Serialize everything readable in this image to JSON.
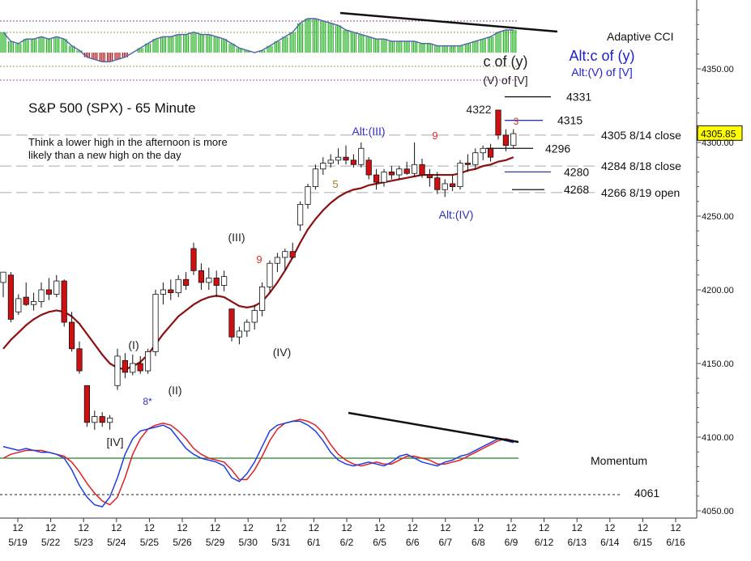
{
  "chart_data": {
    "type": "candlestick",
    "title": "S&P 500 (SPX) - 65 Minute",
    "note": [
      "Think a lower high in the afternoon is more",
      "likely than a new high on the day"
    ],
    "y_axis": {
      "ticks": [
        4050,
        4100,
        4150,
        4200,
        4250,
        4300,
        4350
      ],
      "tick_labels": [
        "4050.00",
        "4100.00",
        "4150.00",
        "4200.00",
        "4250.00",
        "4300.00",
        "4350.00"
      ],
      "ylim": [
        4045,
        4390
      ]
    },
    "x_axis": {
      "dates": [
        "5/19",
        "5/22",
        "5/23",
        "5/24",
        "5/25",
        "5/26",
        "5/29",
        "5/30",
        "5/31",
        "6/1",
        "6/2",
        "6/5",
        "6/6",
        "6/7",
        "6/8",
        "6/9",
        "6/12",
        "6/13",
        "6/14",
        "6/15",
        "6/16"
      ],
      "hour_label": "12"
    },
    "last_price": "4305.85",
    "price_candles": [
      [
        4205,
        4212,
        4195,
        4212
      ],
      [
        4210,
        4212,
        4178,
        4180
      ],
      [
        4185,
        4197,
        4183,
        4194
      ],
      [
        4195,
        4205,
        4189,
        4190
      ],
      [
        4190,
        4198,
        4186,
        4192
      ],
      [
        4192,
        4205,
        4188,
        4200
      ],
      [
        4200,
        4208,
        4193,
        4197
      ],
      [
        4197,
        4210,
        4195,
        4206
      ],
      [
        4206,
        4207,
        4175,
        4178
      ],
      [
        4178,
        4185,
        4158,
        4160
      ],
      [
        4160,
        4165,
        4143,
        4145
      ],
      [
        4135,
        4135,
        4107,
        4110
      ],
      [
        4110,
        4118,
        4105,
        4114
      ],
      [
        4114,
        4117,
        4107,
        4110
      ],
      [
        4110,
        4115,
        4105,
        4113
      ],
      [
        4135,
        4160,
        4132,
        4155
      ],
      [
        4152,
        4157,
        4140,
        4144
      ],
      [
        4144,
        4156,
        4142,
        4150
      ],
      [
        4150,
        4155,
        4143,
        4145
      ],
      [
        4145,
        4160,
        4143,
        4158
      ],
      [
        4158,
        4200,
        4155,
        4197
      ],
      [
        4197,
        4205,
        4190,
        4200
      ],
      [
        4200,
        4207,
        4193,
        4198
      ],
      [
        4198,
        4210,
        4195,
        4207
      ],
      [
        4207,
        4212,
        4200,
        4203
      ],
      [
        4228,
        4232,
        4210,
        4213
      ],
      [
        4213,
        4218,
        4200,
        4205
      ],
      [
        4205,
        4215,
        4200,
        4208
      ],
      [
        4208,
        4213,
        4195,
        4203
      ],
      [
        4203,
        4213,
        4199,
        4209
      ],
      [
        4187,
        4187,
        4165,
        4168
      ],
      [
        4168,
        4175,
        4163,
        4172
      ],
      [
        4172,
        4180,
        4168,
        4178
      ],
      [
        4178,
        4190,
        4173,
        4186
      ],
      [
        4186,
        4205,
        4182,
        4202
      ],
      [
        4202,
        4220,
        4198,
        4218
      ],
      [
        4218,
        4225,
        4212,
        4222
      ],
      [
        4222,
        4228,
        4213,
        4226
      ],
      [
        4226,
        4232,
        4221,
        4222
      ],
      [
        4244,
        4260,
        4240,
        4258
      ],
      [
        4258,
        4272,
        4255,
        4270
      ],
      [
        4270,
        4285,
        4268,
        4282
      ],
      [
        4282,
        4290,
        4278,
        4286
      ],
      [
        4286,
        4292,
        4283,
        4288
      ],
      [
        4288,
        4296,
        4285,
        4290
      ],
      [
        4290,
        4298,
        4285,
        4288
      ],
      [
        4288,
        4292,
        4283,
        4285
      ],
      [
        4285,
        4300,
        4283,
        4296
      ],
      [
        4288,
        4290,
        4275,
        4278
      ],
      [
        4278,
        4282,
        4268,
        4273
      ],
      [
        4273,
        4282,
        4270,
        4280
      ],
      [
        4280,
        4284,
        4275,
        4278
      ],
      [
        4278,
        4284,
        4275,
        4282
      ],
      [
        4282,
        4287,
        4278,
        4279
      ],
      [
        4279,
        4300,
        4277,
        4285
      ],
      [
        4285,
        4289,
        4276,
        4278
      ],
      [
        4278,
        4282,
        4270,
        4276
      ],
      [
        4276,
        4280,
        4265,
        4268
      ],
      [
        4268,
        4275,
        4263,
        4272
      ],
      [
        4272,
        4278,
        4267,
        4270
      ],
      [
        4270,
        4288,
        4268,
        4286
      ],
      [
        4286,
        4292,
        4280,
        4285
      ],
      [
        4285,
        4296,
        4282,
        4293
      ],
      [
        4293,
        4298,
        4288,
        4296
      ],
      [
        4296,
        4299,
        4287,
        4290
      ],
      [
        4322,
        4322,
        4302,
        4305
      ],
      [
        4305,
        4309,
        4294,
        4298
      ],
      [
        4298,
        4309,
        4296,
        4306
      ]
    ],
    "moving_average": [
      4160,
      4166,
      4171,
      4176,
      4180,
      4183,
      4185,
      4186,
      4185,
      4182,
      4177,
      4170,
      4163,
      4156,
      4150,
      4147,
      4146,
      4148,
      4151,
      4156,
      4163,
      4170,
      4176,
      4182,
      4186,
      4190,
      4193,
      4195,
      4196,
      4195,
      4192,
      4189,
      4188,
      4189,
      4192,
      4198,
      4205,
      4213,
      4222,
      4232,
      4241,
      4248,
      4254,
      4259,
      4263,
      4266,
      4268,
      4269,
      4271,
      4272,
      4273,
      4274,
      4275,
      4276,
      4277,
      4278,
      4278,
      4278,
      4278,
      4278,
      4279,
      4281,
      4282,
      4284,
      4285,
      4287,
      4288,
      4290
    ],
    "cci_histogram": [
      0.9,
      0.5,
      0.4,
      0.6,
      0.6,
      0.7,
      0.6,
      0.7,
      0.6,
      0.3,
      0.1,
      -0.2,
      -0.3,
      -0.4,
      -0.4,
      -0.3,
      -0.2,
      0.0,
      0.2,
      0.4,
      0.6,
      0.7,
      0.7,
      0.8,
      0.8,
      0.9,
      0.8,
      0.8,
      0.7,
      0.6,
      0.4,
      0.2,
      0.1,
      0.0,
      0.1,
      0.3,
      0.5,
      0.7,
      0.9,
      1.3,
      1.5,
      1.5,
      1.4,
      1.3,
      1.2,
      1.0,
      0.9,
      0.8,
      0.7,
      0.6,
      0.6,
      0.5,
      0.5,
      0.5,
      0.5,
      0.4,
      0.4,
      0.3,
      0.3,
      0.3,
      0.3,
      0.4,
      0.5,
      0.6,
      0.7,
      0.9,
      1.0,
      1.0
    ],
    "momentum_blue": [
      0.3,
      0.25,
      0.2,
      0.25,
      0.2,
      0.15,
      0.15,
      0.1,
      0.0,
      -0.3,
      -0.7,
      -1.0,
      -1.2,
      -1.25,
      -1.0,
      -0.5,
      0.1,
      0.5,
      0.7,
      0.75,
      0.8,
      0.85,
      0.75,
      0.5,
      0.25,
      0.1,
      0.0,
      -0.05,
      -0.1,
      -0.2,
      -0.5,
      -0.6,
      -0.4,
      -0.1,
      0.3,
      0.7,
      0.85,
      0.9,
      0.95,
      0.95,
      0.85,
      0.7,
      0.45,
      0.15,
      -0.05,
      -0.15,
      -0.2,
      -0.15,
      -0.1,
      -0.15,
      -0.2,
      -0.1,
      0.05,
      0.1,
      0.0,
      -0.1,
      -0.15,
      -0.2,
      -0.1,
      -0.05,
      0.05,
      0.1,
      0.2,
      0.3,
      0.4,
      0.5,
      0.45,
      0.4
    ],
    "momentum_red": [
      0.0,
      0.1,
      0.15,
      0.2,
      0.2,
      0.2,
      0.15,
      0.1,
      0.05,
      -0.1,
      -0.35,
      -0.65,
      -0.9,
      -1.1,
      -1.2,
      -1.0,
      -0.5,
      0.1,
      0.5,
      0.75,
      0.85,
      0.9,
      0.85,
      0.7,
      0.5,
      0.25,
      0.1,
      0.0,
      -0.05,
      -0.1,
      -0.3,
      -0.55,
      -0.55,
      -0.3,
      0.05,
      0.45,
      0.75,
      0.9,
      0.95,
      1.0,
      0.95,
      0.85,
      0.65,
      0.35,
      0.1,
      -0.05,
      -0.15,
      -0.2,
      -0.15,
      -0.1,
      -0.15,
      -0.15,
      -0.05,
      0.05,
      0.05,
      0.0,
      -0.05,
      -0.15,
      -0.15,
      -0.1,
      -0.05,
      0.05,
      0.15,
      0.25,
      0.35,
      0.45,
      0.5,
      0.45
    ],
    "horizontal_levels": [
      {
        "value": 4331,
        "label": "4331"
      },
      {
        "value": 4315,
        "label": "4315"
      },
      {
        "value": 4296,
        "label": "4296"
      },
      {
        "value": 4280,
        "label": "4280"
      },
      {
        "value": 4268,
        "label": "4268"
      }
    ],
    "reference_levels": [
      {
        "value": 4305,
        "label": "4305 8/14 close"
      },
      {
        "value": 4284,
        "label": "4284 8/18 close"
      },
      {
        "value": 4266,
        "label": "4266 8/19 open"
      }
    ],
    "momentum_reference": "4061",
    "panel_labels": {
      "cci": "Adaptive CCI",
      "momentum": "Momentum"
    },
    "wave_labels": [
      {
        "text": "[IV]",
        "color": "#222222"
      },
      {
        "text": "(I)",
        "color": "#222222"
      },
      {
        "text": "8*",
        "color": "#3030c0"
      },
      {
        "text": "(II)",
        "color": "#222222"
      },
      {
        "text": "(III)",
        "color": "#222222"
      },
      {
        "text": "9",
        "color": "#d03030"
      },
      {
        "text": "(IV)",
        "color": "#222222"
      },
      {
        "text": "5",
        "color": "#a08020"
      },
      {
        "text": "Alt:(III)",
        "color": "#3030c0"
      },
      {
        "text": "9",
        "color": "#d03030"
      },
      {
        "text": "Alt:(IV)",
        "color": "#3030c0"
      },
      {
        "text": "4322",
        "color": "#222222"
      },
      {
        "text": "3",
        "color": "#d03030"
      },
      {
        "text": "c of (y)",
        "color": "#222222"
      },
      {
        "text": "(V) of [V]",
        "color": "#222222"
      },
      {
        "text": "Alt:c of (y)",
        "color": "#2020d0"
      },
      {
        "text": "Alt:(V) of [V]",
        "color": "#2020d0"
      }
    ],
    "colors": {
      "candle_up": "#ffffff",
      "candle_down": "#d01010",
      "ma": "#8b1010",
      "momentum_blue": "#1f3fe0",
      "momentum_red": "#e02020",
      "momentum_zero": "#208020",
      "cci_up": "#20b020",
      "cci_down": "#b01010",
      "price_box": "#ffff00",
      "trendline": "#111111"
    }
  }
}
